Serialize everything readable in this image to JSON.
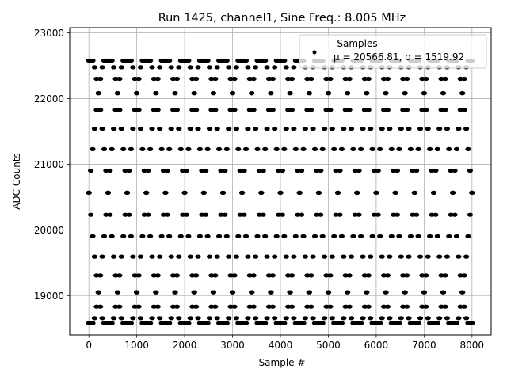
{
  "chart_data": {
    "type": "scatter",
    "title": "Run 1425, channel1, Sine Freq.: 8.005 MHz",
    "xlabel": "Sample #",
    "ylabel": "ADC Counts",
    "xlim": [
      -400,
      8400
    ],
    "ylim": [
      18400,
      23080
    ],
    "xticks": [
      0,
      1000,
      2000,
      3000,
      4000,
      5000,
      6000,
      7000,
      8000
    ],
    "yticks": [
      19000,
      20000,
      21000,
      22000,
      23000
    ],
    "grid": true,
    "legend": {
      "placement": "top-right",
      "title": "Samples",
      "entry": "μ = 20566.81, σ = 1519.92"
    },
    "series": [
      {
        "name": "Samples",
        "color": "#000000",
        "mean": 20566.81,
        "std": 1519.92,
        "amplitude": 2145,
        "offset": 20566.81,
        "clip_high": 22580,
        "clip_low": 18580,
        "sample_step": 40,
        "envelopes": [
          {
            "period": 1600,
            "phase": 0
          },
          {
            "period": 1600,
            "phase": 3.14159
          },
          {
            "period": 1600,
            "phase": 1.5708
          },
          {
            "period": 1600,
            "phase": 4.7124
          }
        ],
        "x_range": [
          0,
          8000
        ]
      }
    ]
  }
}
